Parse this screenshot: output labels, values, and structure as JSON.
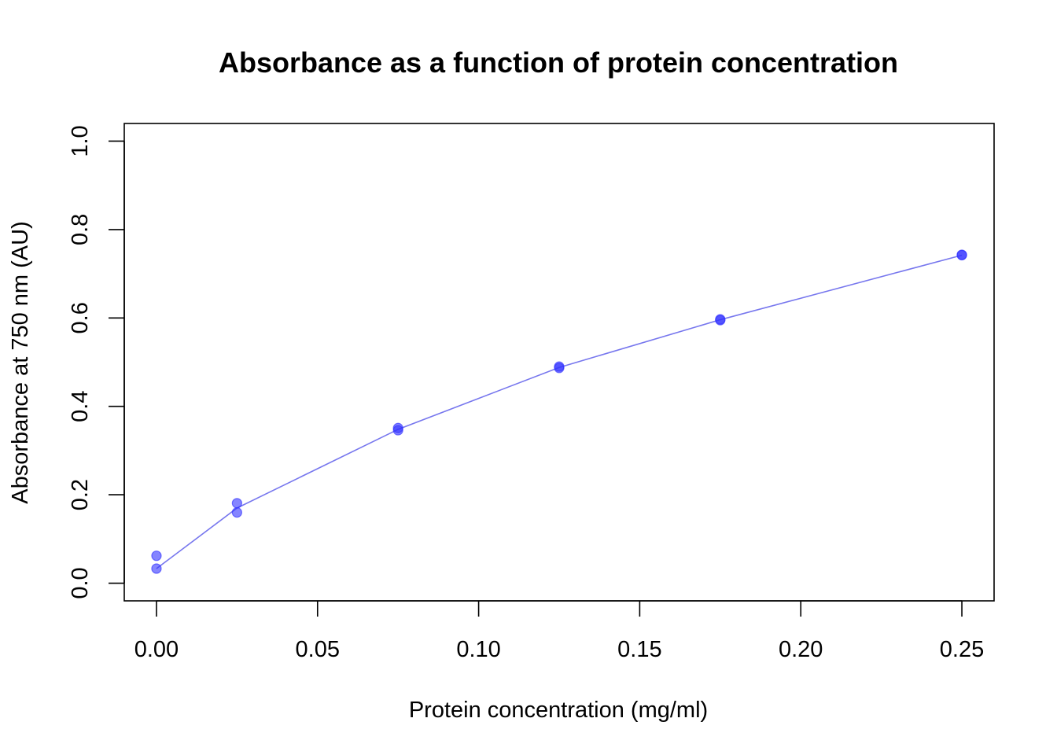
{
  "chart_data": {
    "type": "scatter",
    "title": "Absorbance as a function of protein concentration",
    "xlabel": "Protein concentration (mg/ml)",
    "ylabel": "Absorbance at 750 nm (AU)",
    "xlim": [
      -0.01,
      0.26
    ],
    "ylim": [
      -0.04,
      1.04
    ],
    "x_ticks": [
      0.0,
      0.05,
      0.1,
      0.15,
      0.2,
      0.25
    ],
    "x_tick_labels": [
      "0.00",
      "0.05",
      "0.10",
      "0.15",
      "0.20",
      "0.25"
    ],
    "y_ticks": [
      0.0,
      0.2,
      0.4,
      0.6,
      0.8,
      1.0
    ],
    "y_tick_labels": [
      "0.0",
      "0.2",
      "0.4",
      "0.6",
      "0.8",
      "1.0"
    ],
    "grid": false,
    "legend": "none",
    "colors": {
      "points": "#3333ff",
      "line": "#7777ee"
    },
    "points": [
      {
        "x": 0.0,
        "y": 0.062
      },
      {
        "x": 0.0,
        "y": 0.033
      },
      {
        "x": 0.025,
        "y": 0.181
      },
      {
        "x": 0.025,
        "y": 0.16
      },
      {
        "x": 0.075,
        "y": 0.351
      },
      {
        "x": 0.075,
        "y": 0.346
      },
      {
        "x": 0.125,
        "y": 0.49
      },
      {
        "x": 0.125,
        "y": 0.487
      },
      {
        "x": 0.175,
        "y": 0.597
      },
      {
        "x": 0.175,
        "y": 0.595
      },
      {
        "x": 0.25,
        "y": 0.743
      },
      {
        "x": 0.25,
        "y": 0.742
      }
    ],
    "fit_line": [
      {
        "x": 0.0,
        "y": 0.033
      },
      {
        "x": 0.025,
        "y": 0.17
      },
      {
        "x": 0.075,
        "y": 0.348
      },
      {
        "x": 0.125,
        "y": 0.488
      },
      {
        "x": 0.175,
        "y": 0.596
      },
      {
        "x": 0.25,
        "y": 0.742
      }
    ]
  }
}
